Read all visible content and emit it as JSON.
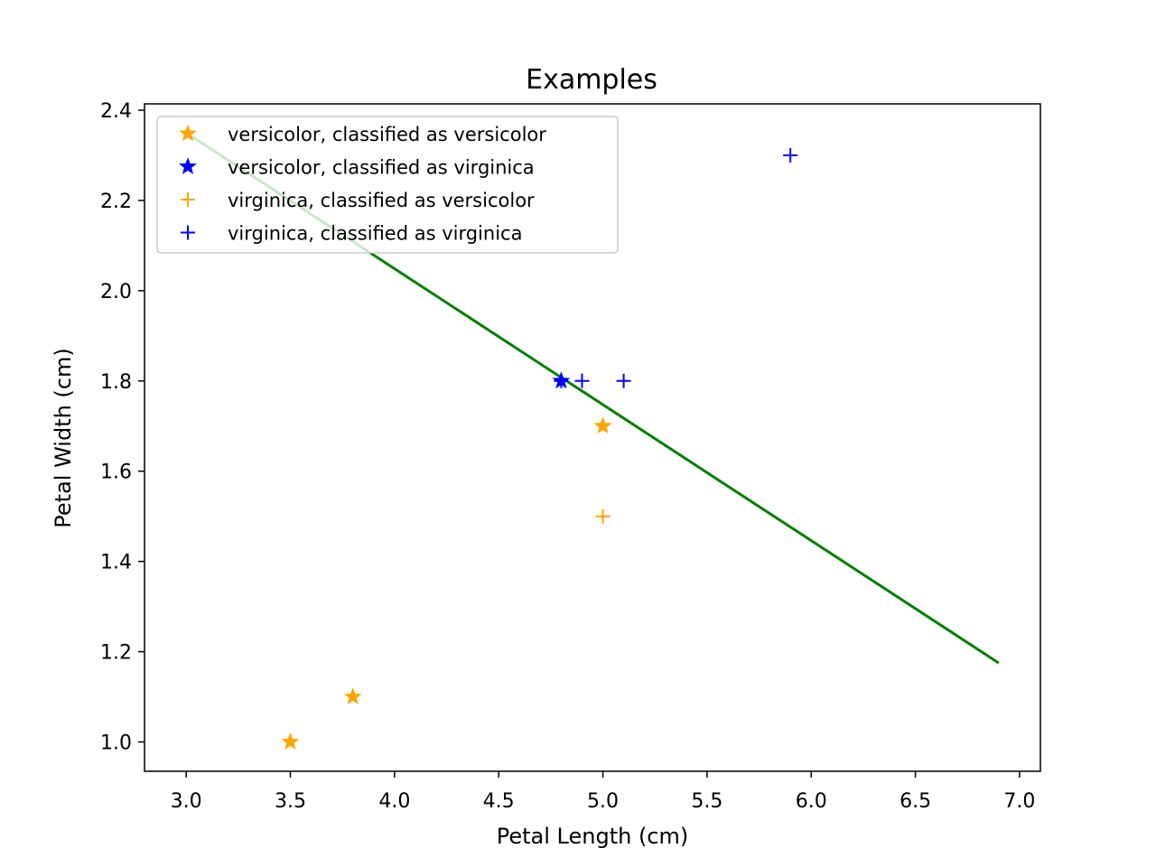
{
  "chart_data": {
    "type": "scatter",
    "title": "Examples",
    "xlabel": "Petal Length (cm)",
    "ylabel": "Petal Width (cm)",
    "xlim": [
      2.8,
      7.1
    ],
    "ylim": [
      0.935,
      2.414
    ],
    "xticks": [
      3.0,
      3.5,
      4.0,
      4.5,
      5.0,
      5.5,
      6.0,
      6.5,
      7.0
    ],
    "xtick_labels": [
      "3.0",
      "3.5",
      "4.0",
      "4.5",
      "5.0",
      "5.5",
      "6.0",
      "6.5",
      "7.0"
    ],
    "yticks": [
      1.0,
      1.2,
      1.4,
      1.6,
      1.8,
      2.0,
      2.2,
      2.4
    ],
    "ytick_labels": [
      "1.0",
      "1.2",
      "1.4",
      "1.6",
      "1.8",
      "2.0",
      "2.2",
      "2.4"
    ],
    "grid": false,
    "legend_position": "top-left",
    "series": [
      {
        "name": "versicolor, classified as versicolor",
        "marker": "star",
        "color": "#ffa500",
        "x": [
          3.5,
          3.8,
          5.0
        ],
        "y": [
          1.0,
          1.1,
          1.7
        ]
      },
      {
        "name": "versicolor, classified as virginica",
        "marker": "star",
        "color": "#0000ff",
        "x": [
          4.8
        ],
        "y": [
          1.8
        ]
      },
      {
        "name": "virginica, classified as versicolor",
        "marker": "plus",
        "color": "#ffa500",
        "x": [
          5.0
        ],
        "y": [
          1.5
        ]
      },
      {
        "name": "virginica, classified as virginica",
        "marker": "plus",
        "color": "#0000ff",
        "x": [
          4.8,
          4.9,
          5.1,
          5.9
        ],
        "y": [
          1.8,
          1.8,
          1.8,
          2.3
        ]
      }
    ],
    "decision_boundary": {
      "color": "#008000",
      "x": [
        3.0,
        6.9
      ],
      "y": [
        2.35,
        1.175
      ]
    }
  }
}
